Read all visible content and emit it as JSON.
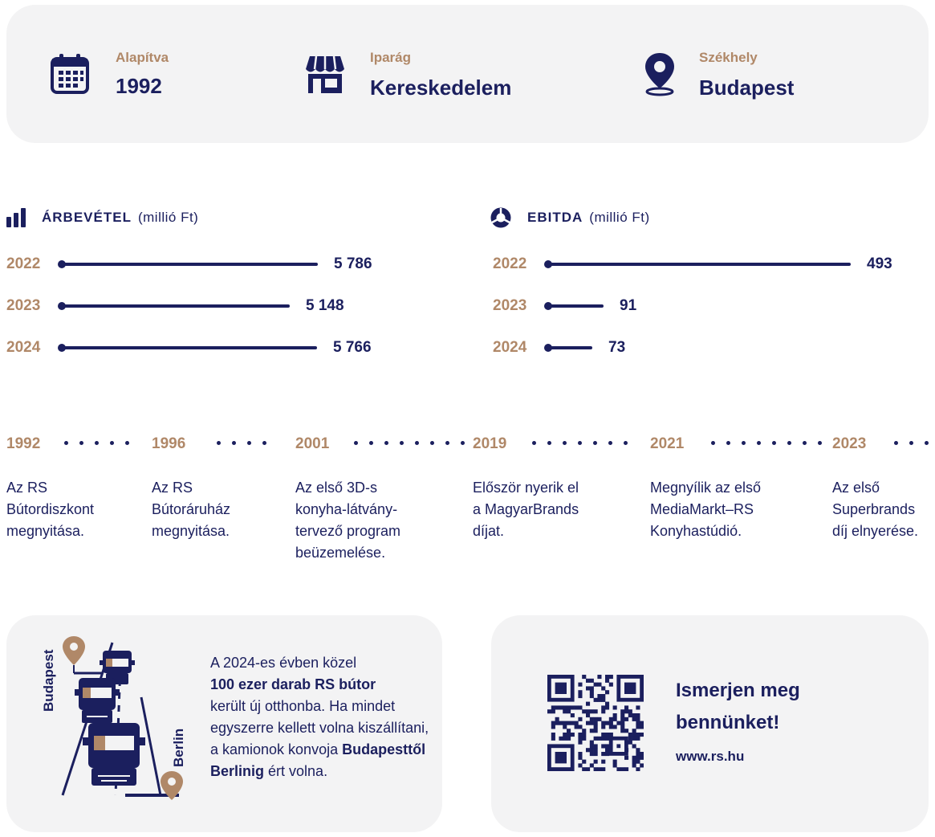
{
  "info": {
    "founded": {
      "label": "Alapítva",
      "value": "1992",
      "icon": "calendar-icon"
    },
    "industry": {
      "label": "Iparág",
      "value": "Kereskedelem",
      "icon": "shop-icon"
    },
    "hq": {
      "label": "Székhely",
      "value": "Budapest",
      "icon": "map-pin-icon"
    }
  },
  "revenue": {
    "title": "ÁRBEVÉTEL",
    "unit": "(millió Ft)",
    "rows": [
      {
        "year": "2022",
        "value_text": "5 786",
        "value": 5786
      },
      {
        "year": "2023",
        "value_text": "5 148",
        "value": 5148
      },
      {
        "year": "2024",
        "value_text": "5 766",
        "value": 5766
      }
    ]
  },
  "ebitda": {
    "title": "EBITDA",
    "unit": "(millió Ft)",
    "rows": [
      {
        "year": "2022",
        "value_text": "493",
        "value": 493
      },
      {
        "year": "2023",
        "value_text": "91",
        "value": 91
      },
      {
        "year": "2024",
        "value_text": "73",
        "value": 73
      }
    ]
  },
  "timeline": [
    {
      "year": "1992",
      "lines": [
        "Az RS",
        "Bútordiszkont",
        "megnyitása."
      ]
    },
    {
      "year": "1996",
      "lines": [
        "Az RS",
        "Bútoráruház",
        "megnyitása."
      ]
    },
    {
      "year": "2001",
      "lines": [
        "Az első 3D-s",
        "konyha-látvány-",
        "tervező program",
        "beüzemelése."
      ]
    },
    {
      "year": "2019",
      "lines": [
        "Először nyerik el",
        "a MagyarBrands",
        "díjat."
      ]
    },
    {
      "year": "2021",
      "lines": [
        "Megnyílik az első",
        "MediaMarkt–RS",
        "Konyhastúdió."
      ]
    },
    {
      "year": "2023",
      "lines": [
        "Az első",
        "Superbrands",
        "díj elnyerése."
      ]
    }
  ],
  "convoy": {
    "start_label": "Budapest",
    "end_label": "Berlin",
    "text_1": "A 2024-es évben közel",
    "text_bold_1": "100 ezer darab RS bútor",
    "text_2": "került új otthonba. Ha mindet egyszerre kellett volna kiszállítani, a kamionok konvoja",
    "text_bold_2": "Budapesttől Berlinig",
    "text_3": "ért volna."
  },
  "qr": {
    "title": "Ismerjen meg bennünket!",
    "url": "www.rs.hu"
  },
  "colors": {
    "navy": "#1b1f5e",
    "gold": "#b08868",
    "panel": "#f3f3f4"
  }
}
